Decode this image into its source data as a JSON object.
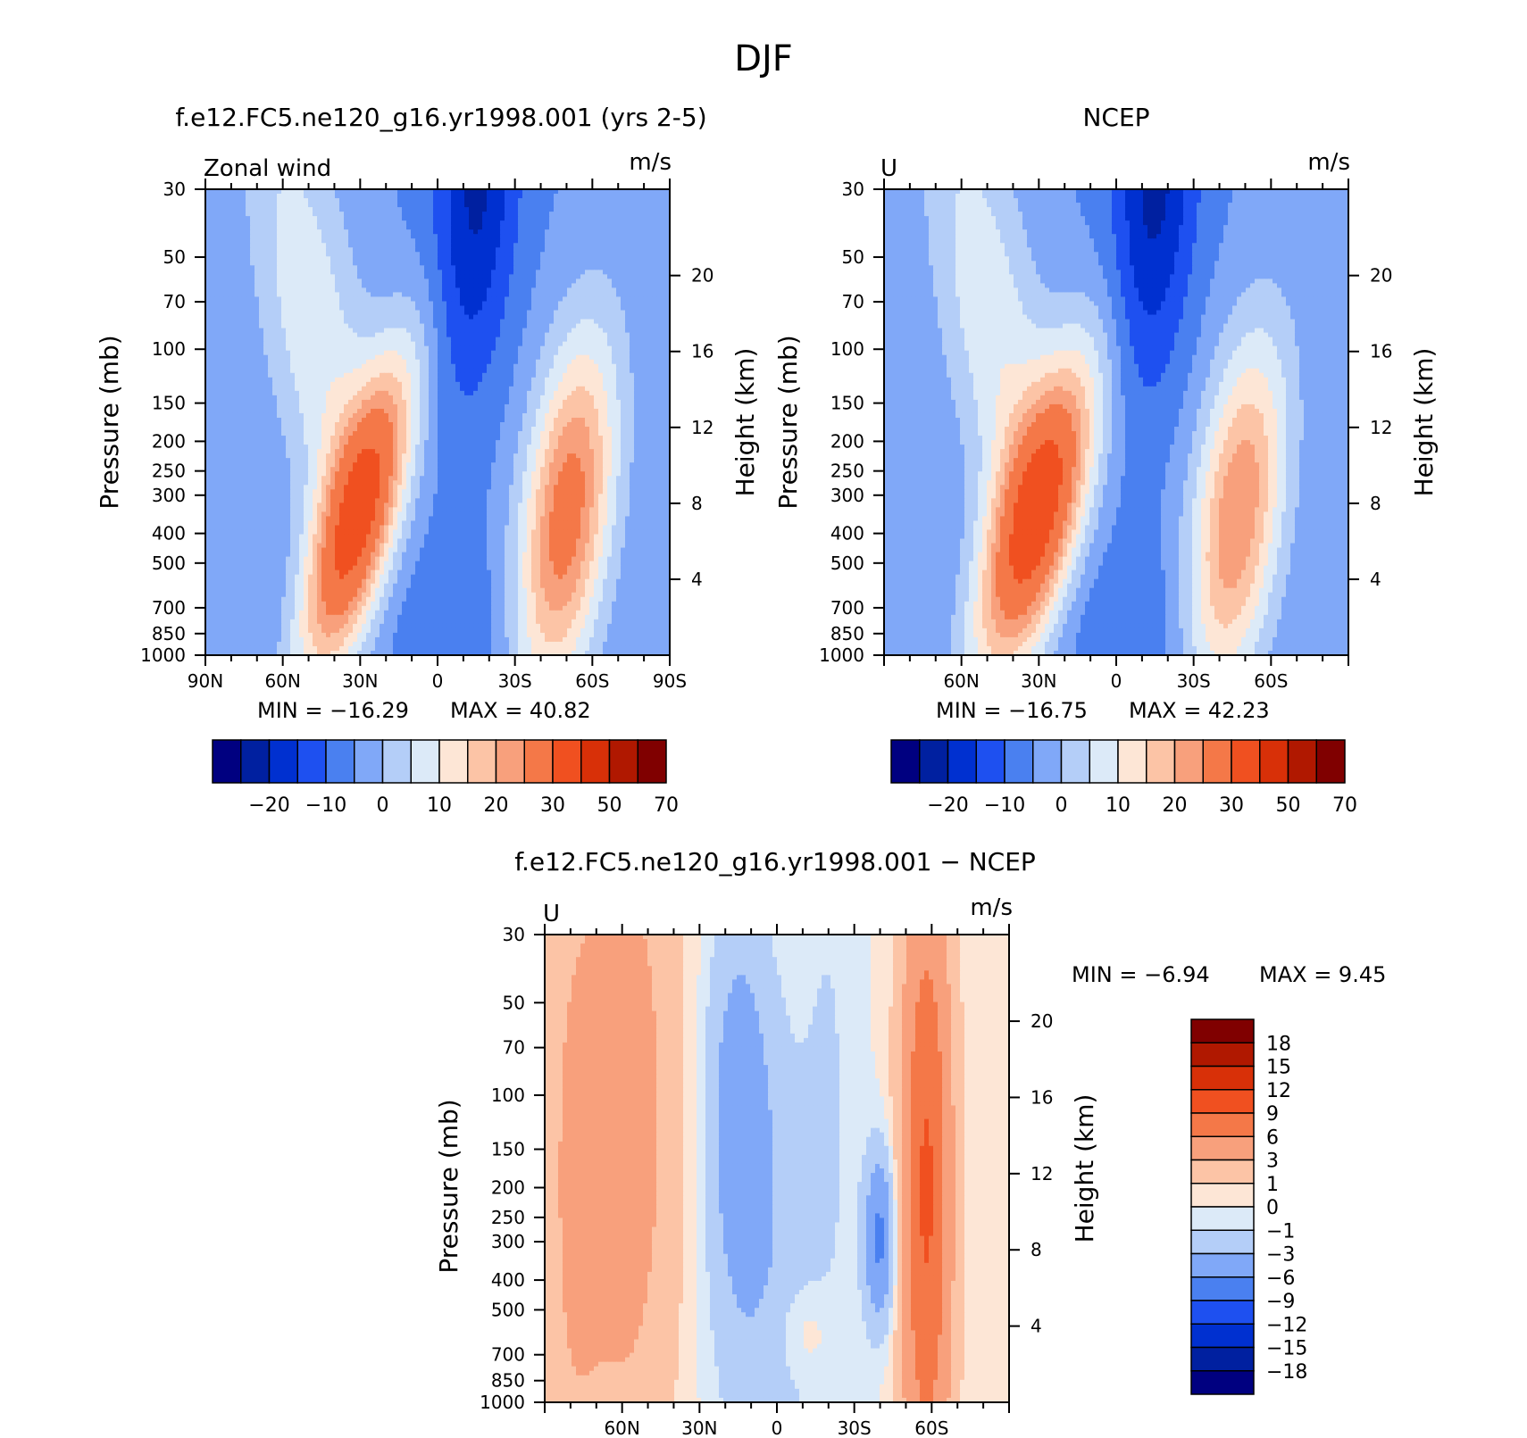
{
  "figure_title": "DJF",
  "colors": {
    "full_field": [
      "#000080",
      "#0020a0",
      "#0030d0",
      "#1e50f0",
      "#4a80f0",
      "#80a8f8",
      "#b4cef8",
      "#dceaf8",
      "#fde6d6",
      "#fcc4a6",
      "#f8a07c",
      "#f47848",
      "#f05020",
      "#d83008",
      "#b01800",
      "#800000"
    ],
    "difference": [
      "#000080",
      "#0020a0",
      "#0030d0",
      "#1e50f0",
      "#4a80f0",
      "#80a8f8",
      "#b4cef8",
      "#dceaf8",
      "#fde6d6",
      "#fcc4a6",
      "#f8a07c",
      "#f47848",
      "#f05020",
      "#d83008",
      "#b01800",
      "#800000"
    ]
  },
  "panels": [
    {
      "id": "model",
      "title": "f.e12.FC5.ne120_g16.yr1998.001 (yrs 2-5)",
      "left_label": "Zonal wind",
      "units": "m/s",
      "ylabel": "Pressure (mb)",
      "y2label": "Height (km)",
      "min_text": "MIN = −16.29",
      "max_text": "MAX =   40.82",
      "x_ticks": [
        "90N",
        "60N",
        "30N",
        "0",
        "30S",
        "60S",
        "90S"
      ],
      "y_ticks": [
        "30",
        "50",
        "70",
        "100",
        "150",
        "200",
        "250",
        "300",
        "400",
        "500",
        "700",
        "850",
        "1000"
      ],
      "y2_ticks": [
        "20",
        "16",
        "12",
        "8",
        "4"
      ],
      "colorbar_labels": [
        "−20",
        "−10",
        "0",
        "10",
        "20",
        "30",
        "50",
        "70"
      ]
    },
    {
      "id": "obs",
      "title": "NCEP",
      "left_label": "U",
      "units": "m/s",
      "ylabel": "Pressure (mb)",
      "y2label": "Height (km)",
      "min_text": "MIN = −16.75",
      "max_text": "MAX =   42.23",
      "x_ticks": [
        "60N",
        "30N",
        "0",
        "30S",
        "60S"
      ],
      "y_ticks": [
        "30",
        "50",
        "70",
        "100",
        "150",
        "200",
        "250",
        "300",
        "400",
        "500",
        "700",
        "850",
        "1000"
      ],
      "y2_ticks": [
        "20",
        "16",
        "12",
        "8",
        "4"
      ],
      "colorbar_labels": [
        "−20",
        "−10",
        "0",
        "10",
        "20",
        "30",
        "50",
        "70"
      ]
    },
    {
      "id": "diff",
      "title": "f.e12.FC5.ne120_g16.yr1998.001 − NCEP",
      "left_label": "U",
      "units": "m/s",
      "ylabel": "Pressure (mb)",
      "y2label": "Height (km)",
      "min_text": "MIN =    −6.94",
      "max_text": "MAX =     9.45",
      "x_ticks": [
        "60N",
        "30N",
        "0",
        "30S",
        "60S"
      ],
      "y_ticks": [
        "30",
        "50",
        "70",
        "100",
        "150",
        "200",
        "250",
        "300",
        "400",
        "500",
        "700",
        "850",
        "1000"
      ],
      "y2_ticks": [
        "20",
        "16",
        "12",
        "8",
        "4"
      ],
      "colorbar_labels": [
        "18",
        "15",
        "12",
        "9",
        "6",
        "3",
        "1",
        "0",
        "−1",
        "−3",
        "−6",
        "−9",
        "−12",
        "−15",
        "−18"
      ]
    }
  ],
  "chart_data": [
    {
      "type": "heatmap",
      "title": "f.e12.FC5.ne120_g16.yr1998.001 (yrs 2-5)",
      "subtitle": "Zonal wind",
      "units": "m/s",
      "xlabel": "",
      "ylabel": "Pressure (mb)",
      "y2label": "Height (km)",
      "x": [
        90,
        60,
        30,
        0,
        -30,
        -60,
        -90
      ],
      "y": [
        30,
        50,
        70,
        100,
        150,
        200,
        250,
        300,
        400,
        500,
        700,
        850,
        1000
      ],
      "y_scale": "log",
      "y_reversed": true,
      "min": -16.29,
      "max": 40.82,
      "color_levels": [
        -25,
        -20,
        -15,
        -10,
        -5,
        0,
        5,
        10,
        15,
        20,
        25,
        30,
        40,
        50,
        60,
        70
      ],
      "features": [
        {
          "type": "max",
          "lat": 30,
          "p": 200,
          "value": 40.82
        },
        {
          "type": "max",
          "lat": -50,
          "p": 200,
          "value": 34
        },
        {
          "type": "min",
          "lat": -15,
          "p": 30,
          "value": -16.29
        }
      ]
    },
    {
      "type": "heatmap",
      "title": "NCEP",
      "subtitle": "U",
      "units": "m/s",
      "xlabel": "",
      "ylabel": "Pressure (mb)",
      "y2label": "Height (km)",
      "x": [
        60,
        30,
        0,
        -30,
        -60
      ],
      "y": [
        30,
        50,
        70,
        100,
        150,
        200,
        250,
        300,
        400,
        500,
        700,
        850,
        1000
      ],
      "y_scale": "log",
      "y_reversed": true,
      "min": -16.75,
      "max": 42.23,
      "color_levels": [
        -25,
        -20,
        -15,
        -10,
        -5,
        0,
        5,
        10,
        15,
        20,
        25,
        30,
        40,
        50,
        60,
        70
      ],
      "features": [
        {
          "type": "max",
          "lat": 30,
          "p": 200,
          "value": 42.23
        },
        {
          "type": "max",
          "lat": -47,
          "p": 200,
          "value": 30
        },
        {
          "type": "min",
          "lat": -15,
          "p": 30,
          "value": -16.75
        }
      ]
    },
    {
      "type": "heatmap",
      "title": "f.e12.FC5.ne120_g16.yr1998.001 − NCEP",
      "subtitle": "U",
      "units": "m/s",
      "xlabel": "",
      "ylabel": "Pressure (mb)",
      "y2label": "Height (km)",
      "x": [
        60,
        30,
        0,
        -30,
        -60
      ],
      "y": [
        30,
        50,
        70,
        100,
        150,
        200,
        250,
        300,
        400,
        500,
        700,
        850,
        1000
      ],
      "y_scale": "log",
      "y_reversed": true,
      "min": -6.94,
      "max": 9.45,
      "color_levels": [
        -21,
        -18,
        -15,
        -12,
        -9,
        -6,
        -3,
        -1,
        0,
        1,
        3,
        6,
        9,
        12,
        15,
        18
      ],
      "features": [
        {
          "type": "max",
          "lat": -58,
          "p": 200,
          "value": 9.45
        },
        {
          "type": "min",
          "lat": -40,
          "p": 300,
          "value": -6.94
        }
      ]
    }
  ]
}
